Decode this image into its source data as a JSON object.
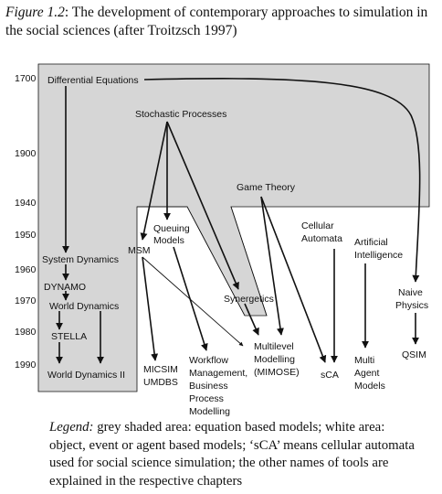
{
  "figure": {
    "number": "Figure 1.2",
    "title": ": The development of contemporary approaches to simulation in the social sciences (after Troitzsch 1997)"
  },
  "years": [
    "1700",
    "1900",
    "1940",
    "1950",
    "1960",
    "1970",
    "1980",
    "1990"
  ],
  "nodes": {
    "differential_equations": "Differential Equations",
    "stochastic_processes": "Stochastic Processes",
    "game_theory": "Game Theory",
    "cellular_automata": [
      "Cellular",
      "Automata"
    ],
    "artificial_intelligence": [
      "Artificial",
      "Intelligence"
    ],
    "queuing_models": [
      "Queuing",
      "Models"
    ],
    "msm": "MSM",
    "system_dynamics": "System Dynamics",
    "dynamo": "DYNAMO",
    "world_dynamics": "World Dynamics",
    "stella": "STELLA",
    "world_dynamics_ii": "World Dynamics II",
    "synergetics": "Synergetics",
    "naive_physics": [
      "Naive",
      "Physics"
    ],
    "micsim_umdbs": [
      "MICSIM",
      "UMDBS"
    ],
    "workflow": [
      "Workflow",
      "Management,",
      "Business",
      "Process",
      "Modelling"
    ],
    "multilevel": [
      "Multilevel",
      "Modelling",
      "(MIMOSE)"
    ],
    "sca": "sCA",
    "multi_agent": [
      "Multi",
      "Agent",
      "Models"
    ],
    "qsim": "QSIM"
  },
  "legend": {
    "label": "Legend:",
    "text": " grey shaded area: equation based models; white area: object, event or agent based models; ‘sCA’ means cellular automata used for social science simulation; the other names of tools are explained in the respective chapters"
  },
  "colors": {
    "shade": "#d6d6d6",
    "line": "#111111"
  }
}
